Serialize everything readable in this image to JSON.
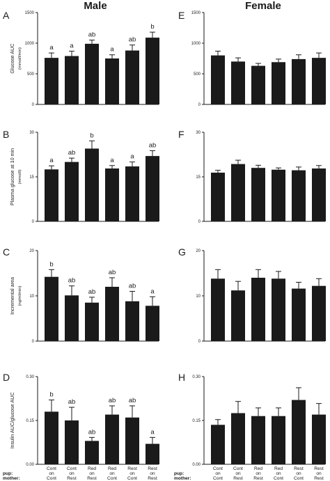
{
  "columns": {
    "male": "Male",
    "female": "Female"
  },
  "row_labels": {
    "pup": "pup:",
    "mother": "mother:"
  },
  "category_labels": [
    [
      "Cont",
      "on",
      "Cont"
    ],
    [
      "Cont",
      "on",
      "Rest"
    ],
    [
      "Red",
      "on",
      "Rest"
    ],
    [
      "Red",
      "on",
      "Cont"
    ],
    [
      "Rest",
      "on",
      "Cont"
    ],
    [
      "Rest",
      "on",
      "Rest"
    ]
  ],
  "chart_data": [
    {
      "panel": "A",
      "type": "bar",
      "title": "",
      "categories": [
        "Cont on Cont",
        "Cont on Rest",
        "Red on Rest",
        "Red on Cont",
        "Rest on Cont",
        "Rest on Rest"
      ],
      "values": [
        760,
        790,
        990,
        750,
        880,
        1090
      ],
      "errors": [
        80,
        80,
        60,
        60,
        90,
        90
      ],
      "significance": [
        "a",
        "a",
        "ab",
        "a",
        "ab",
        "b"
      ],
      "ylabel": "Glucose AUC",
      "yunit": "(mmol/l/min)",
      "ylim": [
        0,
        1500
      ],
      "yticks": [
        0,
        500,
        1000,
        1500
      ],
      "ytick_labels": [
        "0",
        "500",
        "1000",
        "1500"
      ]
    },
    {
      "panel": "B",
      "type": "bar",
      "title": "",
      "categories": [
        "Cont on Cont",
        "Cont on Rest",
        "Red on Rest",
        "Red on Cont",
        "Rest on Cont",
        "Rest on Rest"
      ],
      "values": [
        17.5,
        20.0,
        24.5,
        17.8,
        18.5,
        22.0
      ],
      "errors": [
        1.2,
        1.3,
        2.6,
        1.0,
        1.5,
        1.8
      ],
      "significance": [
        "a",
        "ab",
        "b",
        "a",
        "a",
        "ab"
      ],
      "ylabel": "Plasma glucose at 10 min",
      "yunit": "(mmol/l)",
      "ylim": [
        0,
        30
      ],
      "yticks": [
        0,
        15,
        30
      ],
      "ytick_labels": [
        "0",
        "15",
        "30"
      ]
    },
    {
      "panel": "C",
      "type": "bar",
      "title": "",
      "categories": [
        "Cont on Cont",
        "Cont on Rest",
        "Red on Rest",
        "Red on Cont",
        "Rest on Cont",
        "Rest on Rest"
      ],
      "values": [
        14.2,
        10.1,
        8.5,
        12.0,
        8.8,
        7.8
      ],
      "errors": [
        1.6,
        2.1,
        1.2,
        2.0,
        2.2,
        2.0
      ],
      "significance": [
        "b",
        "ab",
        "ab",
        "ab",
        "ab",
        "a"
      ],
      "ylabel": "Incremental area",
      "yunit": "(ng/ml/min)",
      "ylim": [
        0,
        20
      ],
      "yticks": [
        0,
        10,
        20
      ],
      "ytick_labels": [
        "0",
        "10",
        "20"
      ]
    },
    {
      "panel": "D",
      "type": "bar",
      "title": "",
      "categories": [
        "Cont on Cont",
        "Cont on Rest",
        "Red on Rest",
        "Red on Cont",
        "Rest on Cont",
        "Rest on Rest"
      ],
      "values": [
        0.18,
        0.15,
        0.08,
        0.17,
        0.16,
        0.07
      ],
      "errors": [
        0.04,
        0.045,
        0.012,
        0.03,
        0.04,
        0.022
      ],
      "significance": [
        "b",
        "ab",
        "ab",
        "ab",
        "ab",
        "a"
      ],
      "ylabel": "Insulin AUC/glucose AUC",
      "yunit": "",
      "ylim": [
        0,
        0.3
      ],
      "yticks": [
        0,
        0.15,
        0.3
      ],
      "ytick_labels": [
        "0.00",
        "0.15",
        "0.30"
      ]
    },
    {
      "panel": "E",
      "type": "bar",
      "title": "",
      "categories": [
        "Cont on Cont",
        "Cont on Rest",
        "Red on Rest",
        "Red on Cont",
        "Rest on Cont",
        "Rest on Rest"
      ],
      "values": [
        800,
        700,
        630,
        690,
        740,
        760
      ],
      "errors": [
        70,
        60,
        40,
        50,
        70,
        80
      ],
      "significance": [
        "",
        "",
        "",
        "",
        "",
        ""
      ],
      "ylabel": "",
      "yunit": "",
      "ylim": [
        0,
        1500
      ],
      "yticks": [
        0,
        500,
        1000,
        1500
      ],
      "ytick_labels": [
        "0",
        "500",
        "1000",
        "1500"
      ]
    },
    {
      "panel": "F",
      "type": "bar",
      "title": "",
      "categories": [
        "Cont on Cont",
        "Cont on Rest",
        "Red on Rest",
        "Red on Cont",
        "Rest on Cont",
        "Rest on Rest"
      ],
      "values": [
        16.4,
        19.3,
        18.0,
        17.4,
        17.2,
        17.8
      ],
      "errors": [
        0.8,
        1.3,
        0.9,
        0.6,
        1.1,
        1.0
      ],
      "significance": [
        "",
        "",
        "",
        "",
        "",
        ""
      ],
      "ylabel": "",
      "yunit": "",
      "ylim": [
        0,
        30
      ],
      "yticks": [
        0,
        15,
        30
      ],
      "ytick_labels": [
        "0",
        "15",
        "30"
      ]
    },
    {
      "panel": "G",
      "type": "bar",
      "title": "",
      "categories": [
        "Cont on Cont",
        "Cont on Rest",
        "Red on Rest",
        "Red on Cont",
        "Rest on Cont",
        "Rest on Rest"
      ],
      "values": [
        13.8,
        11.2,
        14.0,
        13.8,
        11.6,
        12.2
      ],
      "errors": [
        2.0,
        2.0,
        1.8,
        1.6,
        1.4,
        1.6
      ],
      "significance": [
        "",
        "",
        "",
        "",
        "",
        ""
      ],
      "ylabel": "",
      "yunit": "",
      "ylim": [
        0,
        20
      ],
      "yticks": [
        0,
        10,
        20
      ],
      "ytick_labels": [
        "0",
        "10",
        "20"
      ]
    },
    {
      "panel": "H",
      "type": "bar",
      "title": "",
      "categories": [
        "Cont on Cont",
        "Cont on Rest",
        "Red on Rest",
        "Red on Cont",
        "Rest on Cont",
        "Rest on Rest"
      ],
      "values": [
        0.135,
        0.175,
        0.165,
        0.165,
        0.22,
        0.17
      ],
      "errors": [
        0.018,
        0.04,
        0.028,
        0.028,
        0.042,
        0.038
      ],
      "significance": [
        "",
        "",
        "",
        "",
        "",
        ""
      ],
      "ylabel": "",
      "yunit": "",
      "ylim": [
        0,
        0.3
      ],
      "yticks": [
        0,
        0.15,
        0.3
      ],
      "ytick_labels": [
        "0.00",
        "0.15",
        "0.30"
      ]
    }
  ]
}
